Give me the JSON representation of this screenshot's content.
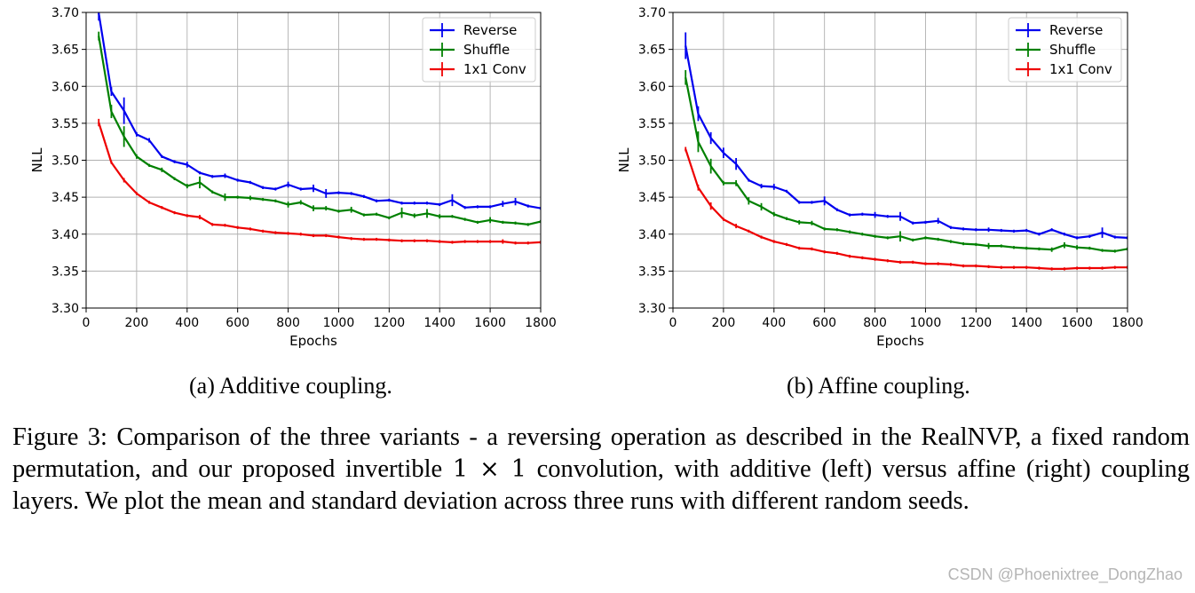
{
  "chart_data": [
    {
      "type": "line",
      "title": "",
      "xlabel": "Epochs",
      "ylabel": "NLL",
      "xlim": [
        0,
        1800
      ],
      "ylim": [
        3.3,
        3.7
      ],
      "xticks": [
        0,
        200,
        400,
        600,
        800,
        1000,
        1200,
        1400,
        1600,
        1800
      ],
      "yticks": [
        3.3,
        3.35,
        3.4,
        3.45,
        3.5,
        3.55,
        3.6,
        3.65,
        3.7
      ],
      "grid": true,
      "legend_position": "top-right",
      "series": [
        {
          "name": "Reverse",
          "color": "#0000ee",
          "x": [
            50,
            100,
            150,
            200,
            250,
            300,
            350,
            400,
            450,
            500,
            550,
            600,
            650,
            700,
            750,
            800,
            850,
            900,
            950,
            1000,
            1050,
            1100,
            1150,
            1200,
            1250,
            1300,
            1350,
            1400,
            1450,
            1500,
            1550,
            1600,
            1650,
            1700,
            1750,
            1800
          ],
          "values": [
            3.699,
            3.593,
            3.567,
            3.535,
            3.527,
            3.505,
            3.498,
            3.494,
            3.483,
            3.478,
            3.479,
            3.473,
            3.47,
            3.463,
            3.461,
            3.467,
            3.461,
            3.462,
            3.455,
            3.456,
            3.455,
            3.451,
            3.445,
            3.446,
            3.442,
            3.442,
            3.442,
            3.44,
            3.446,
            3.436,
            3.437,
            3.437,
            3.441,
            3.444,
            3.438,
            3.435
          ],
          "err": [
            0.01,
            0.006,
            0.018,
            0.003,
            0.003,
            0.002,
            0.002,
            0.004,
            0.002,
            0.002,
            0.003,
            0.002,
            0.002,
            0.002,
            0.002,
            0.004,
            0.002,
            0.005,
            0.006,
            0.002,
            0.002,
            0.002,
            0.002,
            0.002,
            0.002,
            0.002,
            0.002,
            0.002,
            0.008,
            0.002,
            0.002,
            0.002,
            0.004,
            0.005,
            0.002,
            0.002
          ]
        },
        {
          "name": "Shuffle",
          "color": "#008000",
          "x": [
            50,
            100,
            150,
            200,
            250,
            300,
            350,
            400,
            450,
            500,
            550,
            600,
            650,
            700,
            750,
            800,
            850,
            900,
            950,
            1000,
            1050,
            1100,
            1150,
            1200,
            1250,
            1300,
            1350,
            1400,
            1450,
            1500,
            1550,
            1600,
            1650,
            1700,
            1750,
            1800
          ],
          "values": [
            3.668,
            3.566,
            3.532,
            3.505,
            3.493,
            3.487,
            3.475,
            3.465,
            3.47,
            3.457,
            3.45,
            3.45,
            3.449,
            3.447,
            3.445,
            3.44,
            3.443,
            3.435,
            3.435,
            3.431,
            3.433,
            3.426,
            3.427,
            3.422,
            3.429,
            3.425,
            3.428,
            3.424,
            3.424,
            3.42,
            3.416,
            3.419,
            3.416,
            3.415,
            3.413,
            3.417
          ],
          "err": [
            0.006,
            0.009,
            0.014,
            0.003,
            0.002,
            0.003,
            0.002,
            0.003,
            0.008,
            0.002,
            0.005,
            0.002,
            0.003,
            0.002,
            0.002,
            0.004,
            0.003,
            0.004,
            0.003,
            0.002,
            0.004,
            0.002,
            0.002,
            0.002,
            0.007,
            0.003,
            0.006,
            0.003,
            0.002,
            0.002,
            0.002,
            0.004,
            0.002,
            0.002,
            0.002,
            0.002
          ]
        },
        {
          "name": "1x1 Conv",
          "color": "#ee0000",
          "x": [
            50,
            100,
            150,
            200,
            250,
            300,
            350,
            400,
            450,
            500,
            550,
            600,
            650,
            700,
            750,
            800,
            850,
            900,
            950,
            1000,
            1050,
            1100,
            1150,
            1200,
            1250,
            1300,
            1350,
            1400,
            1450,
            1500,
            1550,
            1600,
            1650,
            1700,
            1750,
            1800
          ],
          "values": [
            3.551,
            3.497,
            3.473,
            3.455,
            3.443,
            3.436,
            3.429,
            3.425,
            3.423,
            3.413,
            3.412,
            3.409,
            3.407,
            3.404,
            3.402,
            3.401,
            3.4,
            3.398,
            3.398,
            3.396,
            3.394,
            3.393,
            3.393,
            3.392,
            3.391,
            3.391,
            3.391,
            3.39,
            3.389,
            3.39,
            3.39,
            3.39,
            3.39,
            3.388,
            3.388,
            3.389
          ],
          "err": [
            0.005,
            0.002,
            0.003,
            0.002,
            0.002,
            0.002,
            0.002,
            0.002,
            0.003,
            0.002,
            0.002,
            0.002,
            0.002,
            0.002,
            0.002,
            0.002,
            0.002,
            0.002,
            0.002,
            0.002,
            0.002,
            0.002,
            0.002,
            0.002,
            0.002,
            0.002,
            0.002,
            0.002,
            0.002,
            0.002,
            0.002,
            0.002,
            0.003,
            0.002,
            0.002,
            0.002
          ]
        }
      ]
    },
    {
      "type": "line",
      "title": "",
      "xlabel": "Epochs",
      "ylabel": "NLL",
      "xlim": [
        0,
        1800
      ],
      "ylim": [
        3.3,
        3.7
      ],
      "xticks": [
        0,
        200,
        400,
        600,
        800,
        1000,
        1200,
        1400,
        1600,
        1800
      ],
      "yticks": [
        3.3,
        3.35,
        3.4,
        3.45,
        3.5,
        3.55,
        3.6,
        3.65,
        3.7
      ],
      "grid": true,
      "legend_position": "top-right",
      "series": [
        {
          "name": "Reverse",
          "color": "#0000ee",
          "x": [
            50,
            100,
            150,
            200,
            250,
            300,
            350,
            400,
            450,
            500,
            550,
            600,
            650,
            700,
            750,
            800,
            850,
            900,
            950,
            1000,
            1050,
            1100,
            1150,
            1200,
            1250,
            1300,
            1350,
            1400,
            1450,
            1500,
            1550,
            1600,
            1650,
            1700,
            1750,
            1800
          ],
          "values": [
            3.655,
            3.563,
            3.53,
            3.51,
            3.495,
            3.473,
            3.465,
            3.464,
            3.458,
            3.443,
            3.443,
            3.445,
            3.433,
            3.426,
            3.427,
            3.426,
            3.424,
            3.424,
            3.415,
            3.416,
            3.418,
            3.409,
            3.407,
            3.406,
            3.406,
            3.405,
            3.404,
            3.405,
            3.4,
            3.406,
            3.4,
            3.395,
            3.397,
            3.402,
            3.396,
            3.395
          ],
          "err": [
            0.018,
            0.01,
            0.008,
            0.007,
            0.008,
            0.002,
            0.003,
            0.004,
            0.002,
            0.002,
            0.002,
            0.006,
            0.002,
            0.002,
            0.002,
            0.004,
            0.002,
            0.006,
            0.002,
            0.002,
            0.004,
            0.002,
            0.002,
            0.002,
            0.003,
            0.002,
            0.002,
            0.002,
            0.002,
            0.002,
            0.002,
            0.002,
            0.002,
            0.007,
            0.002,
            0.002
          ]
        },
        {
          "name": "Shuffle",
          "color": "#008000",
          "x": [
            50,
            100,
            150,
            200,
            250,
            300,
            350,
            400,
            450,
            500,
            550,
            600,
            650,
            700,
            750,
            800,
            850,
            900,
            950,
            1000,
            1050,
            1100,
            1150,
            1200,
            1250,
            1300,
            1350,
            1400,
            1450,
            1500,
            1550,
            1600,
            1650,
            1700,
            1750,
            1800
          ],
          "values": [
            3.612,
            3.525,
            3.492,
            3.469,
            3.469,
            3.445,
            3.437,
            3.427,
            3.421,
            3.416,
            3.415,
            3.407,
            3.406,
            3.403,
            3.4,
            3.397,
            3.395,
            3.397,
            3.392,
            3.395,
            3.393,
            3.39,
            3.387,
            3.386,
            3.384,
            3.384,
            3.382,
            3.381,
            3.38,
            3.379,
            3.385,
            3.382,
            3.381,
            3.378,
            3.377,
            3.38
          ],
          "err": [
            0.01,
            0.014,
            0.01,
            0.003,
            0.004,
            0.005,
            0.005,
            0.003,
            0.002,
            0.003,
            0.003,
            0.002,
            0.002,
            0.002,
            0.002,
            0.002,
            0.002,
            0.007,
            0.002,
            0.002,
            0.002,
            0.002,
            0.002,
            0.002,
            0.004,
            0.002,
            0.002,
            0.002,
            0.002,
            0.003,
            0.004,
            0.003,
            0.002,
            0.002,
            0.002,
            0.002
          ]
        },
        {
          "name": "1x1 Conv",
          "color": "#ee0000",
          "x": [
            50,
            100,
            150,
            200,
            250,
            300,
            350,
            400,
            450,
            500,
            550,
            600,
            650,
            700,
            750,
            800,
            850,
            900,
            950,
            1000,
            1050,
            1100,
            1150,
            1200,
            1250,
            1300,
            1350,
            1400,
            1450,
            1500,
            1550,
            1600,
            1650,
            1700,
            1750,
            1800
          ],
          "values": [
            3.515,
            3.463,
            3.438,
            3.42,
            3.411,
            3.404,
            3.396,
            3.39,
            3.386,
            3.381,
            3.38,
            3.376,
            3.374,
            3.37,
            3.368,
            3.366,
            3.364,
            3.362,
            3.362,
            3.36,
            3.36,
            3.359,
            3.357,
            3.357,
            3.356,
            3.355,
            3.355,
            3.355,
            3.354,
            3.353,
            3.353,
            3.354,
            3.354,
            3.354,
            3.355,
            3.355
          ],
          "err": [
            0.003,
            0.004,
            0.005,
            0.002,
            0.003,
            0.002,
            0.002,
            0.002,
            0.002,
            0.002,
            0.002,
            0.002,
            0.002,
            0.002,
            0.002,
            0.002,
            0.002,
            0.002,
            0.002,
            0.002,
            0.002,
            0.002,
            0.002,
            0.002,
            0.002,
            0.002,
            0.002,
            0.002,
            0.002,
            0.002,
            0.002,
            0.002,
            0.002,
            0.002,
            0.002,
            0.002
          ]
        }
      ]
    }
  ],
  "subcaptions": [
    "(a) Additive coupling.",
    "(b) Affine coupling."
  ],
  "caption": {
    "text_before": "Figure 3: Comparison of the three variants - a reversing operation as described in the RealNVP, a fixed random permutation, and our proposed invertible ",
    "math": "1 × 1",
    "text_after": " convolution, with additive (left) versus affine (right) coupling layers. We plot the mean and standard deviation across three runs with different random seeds."
  },
  "watermark": "CSDN @Phoenixtree_DongZhao"
}
